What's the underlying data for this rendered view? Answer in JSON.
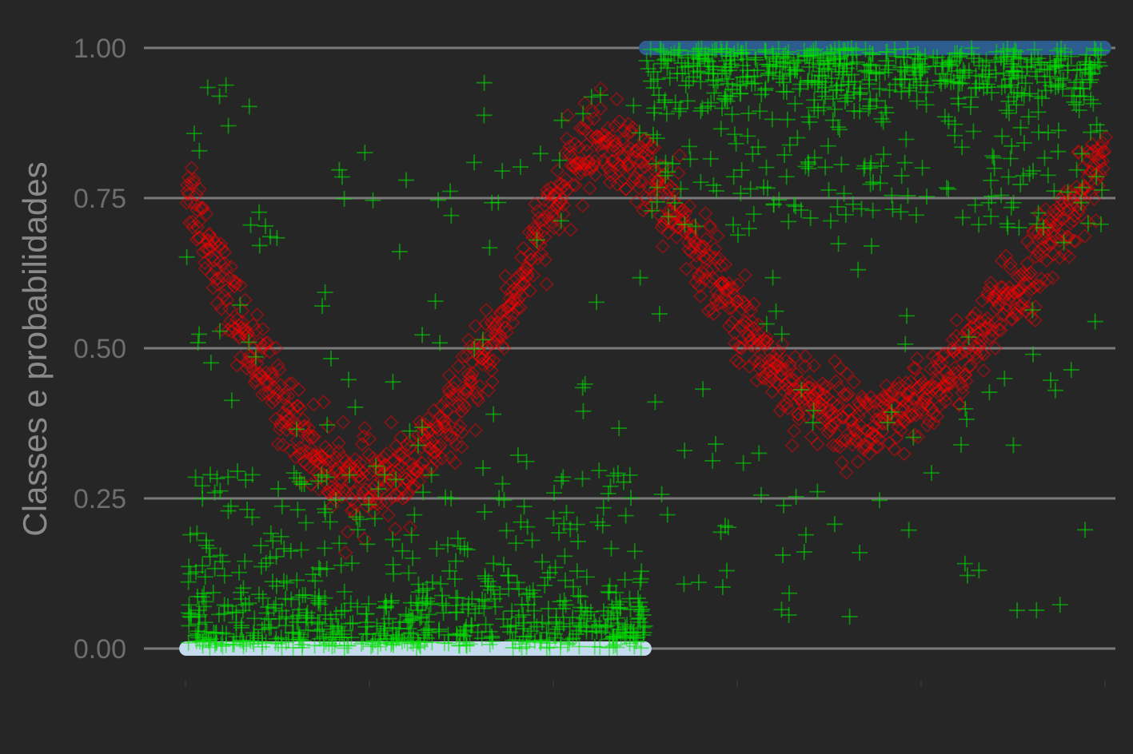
{
  "colors": {
    "background": "#262626",
    "grid": "#7a7a7a",
    "tick_text": "#6e6e6e",
    "axis_title": "#8a8a8a",
    "class_0": "#c6dbef",
    "class_1": "#2d5c8e",
    "probability_points": "#ff0000",
    "noise_points": "#00e000"
  },
  "chart_data": {
    "type": "scatter",
    "title": "",
    "xlabel": "",
    "ylabel": "Classes e probabilidades",
    "xlim": [
      0,
      1000
    ],
    "ylim": [
      -0.1,
      1.05
    ],
    "ytick_labels": [
      "0.00",
      "0.25",
      "0.50",
      "0.75",
      "1.00"
    ],
    "ytick_values": [
      0,
      0.25,
      0.5,
      0.75,
      1.0
    ],
    "grid": "horizontal",
    "legend": "none",
    "series": [
      {
        "marker": "circle",
        "color": "#c6dbef",
        "x_range": [
          1,
          500
        ],
        "y": 0,
        "description": "observed class 0"
      },
      {
        "marker": "circle",
        "color": "#2d5c8e",
        "x_range": [
          501,
          1000
        ],
        "y": 1,
        "description": "observed class 1"
      },
      {
        "marker": "diamond-open",
        "color": "#ff0000",
        "x": [
          1,
          25,
          50,
          75,
          100,
          125,
          150,
          175,
          200,
          225,
          250,
          275,
          300,
          325,
          350,
          375,
          400,
          425,
          450,
          475,
          500,
          525,
          550,
          575,
          600,
          625,
          650,
          675,
          700,
          725,
          750,
          775,
          800,
          825,
          850,
          875,
          900,
          925,
          950,
          975,
          1000
        ],
        "y": [
          0.78,
          0.68,
          0.57,
          0.49,
          0.42,
          0.36,
          0.31,
          0.28,
          0.27,
          0.28,
          0.31,
          0.35,
          0.41,
          0.48,
          0.56,
          0.65,
          0.73,
          0.81,
          0.85,
          0.82,
          0.8,
          0.74,
          0.68,
          0.62,
          0.55,
          0.5,
          0.45,
          0.42,
          0.4,
          0.38,
          0.37,
          0.38,
          0.41,
          0.45,
          0.49,
          0.54,
          0.59,
          0.64,
          0.7,
          0.76,
          0.82
        ]
      },
      {
        "marker": "plus",
        "color": "#00e000",
        "x_range": [
          1,
          500
        ],
        "y_cluster": [
          0,
          0.25
        ],
        "y_spread": [
          0,
          1.0
        ]
      },
      {
        "marker": "plus",
        "color": "#00e000",
        "x_range": [
          501,
          1000
        ],
        "y_cluster": [
          0.75,
          1.0
        ],
        "y_spread": [
          0,
          1.0
        ]
      }
    ]
  }
}
